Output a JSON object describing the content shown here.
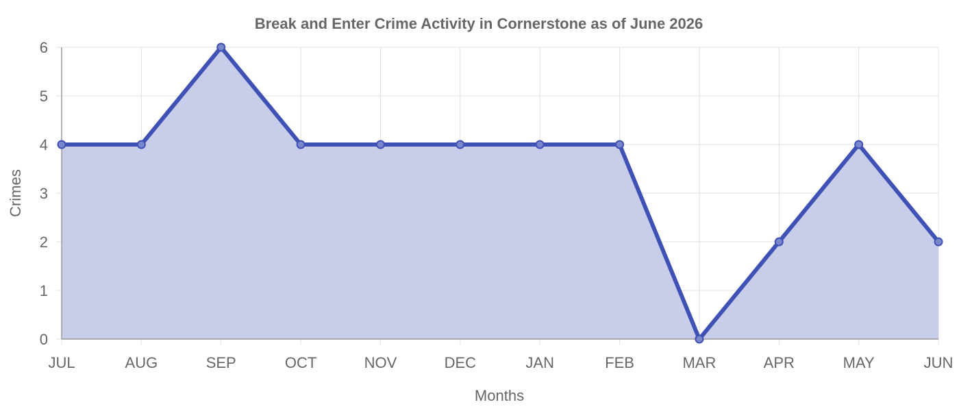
{
  "chart_data": {
    "type": "area",
    "title": "Break and Enter Crime Activity in Cornerstone as of June 2026",
    "xlabel": "Months",
    "ylabel": "Crimes",
    "categories": [
      "JUL",
      "AUG",
      "SEP",
      "OCT",
      "NOV",
      "DEC",
      "JAN",
      "FEB",
      "MAR",
      "APR",
      "MAY",
      "JUN"
    ],
    "series": [
      {
        "values": [
          4,
          4,
          6,
          4,
          4,
          4,
          4,
          4,
          0,
          2,
          4,
          2
        ]
      }
    ],
    "ylim": [
      0,
      6
    ],
    "yticks": [
      0,
      1,
      2,
      3,
      4,
      5,
      6
    ],
    "grid": true,
    "legend": "none",
    "colors": {
      "line": "#3f51b5",
      "fill": "#c5cae9",
      "point_fill": "#7986cb"
    }
  }
}
